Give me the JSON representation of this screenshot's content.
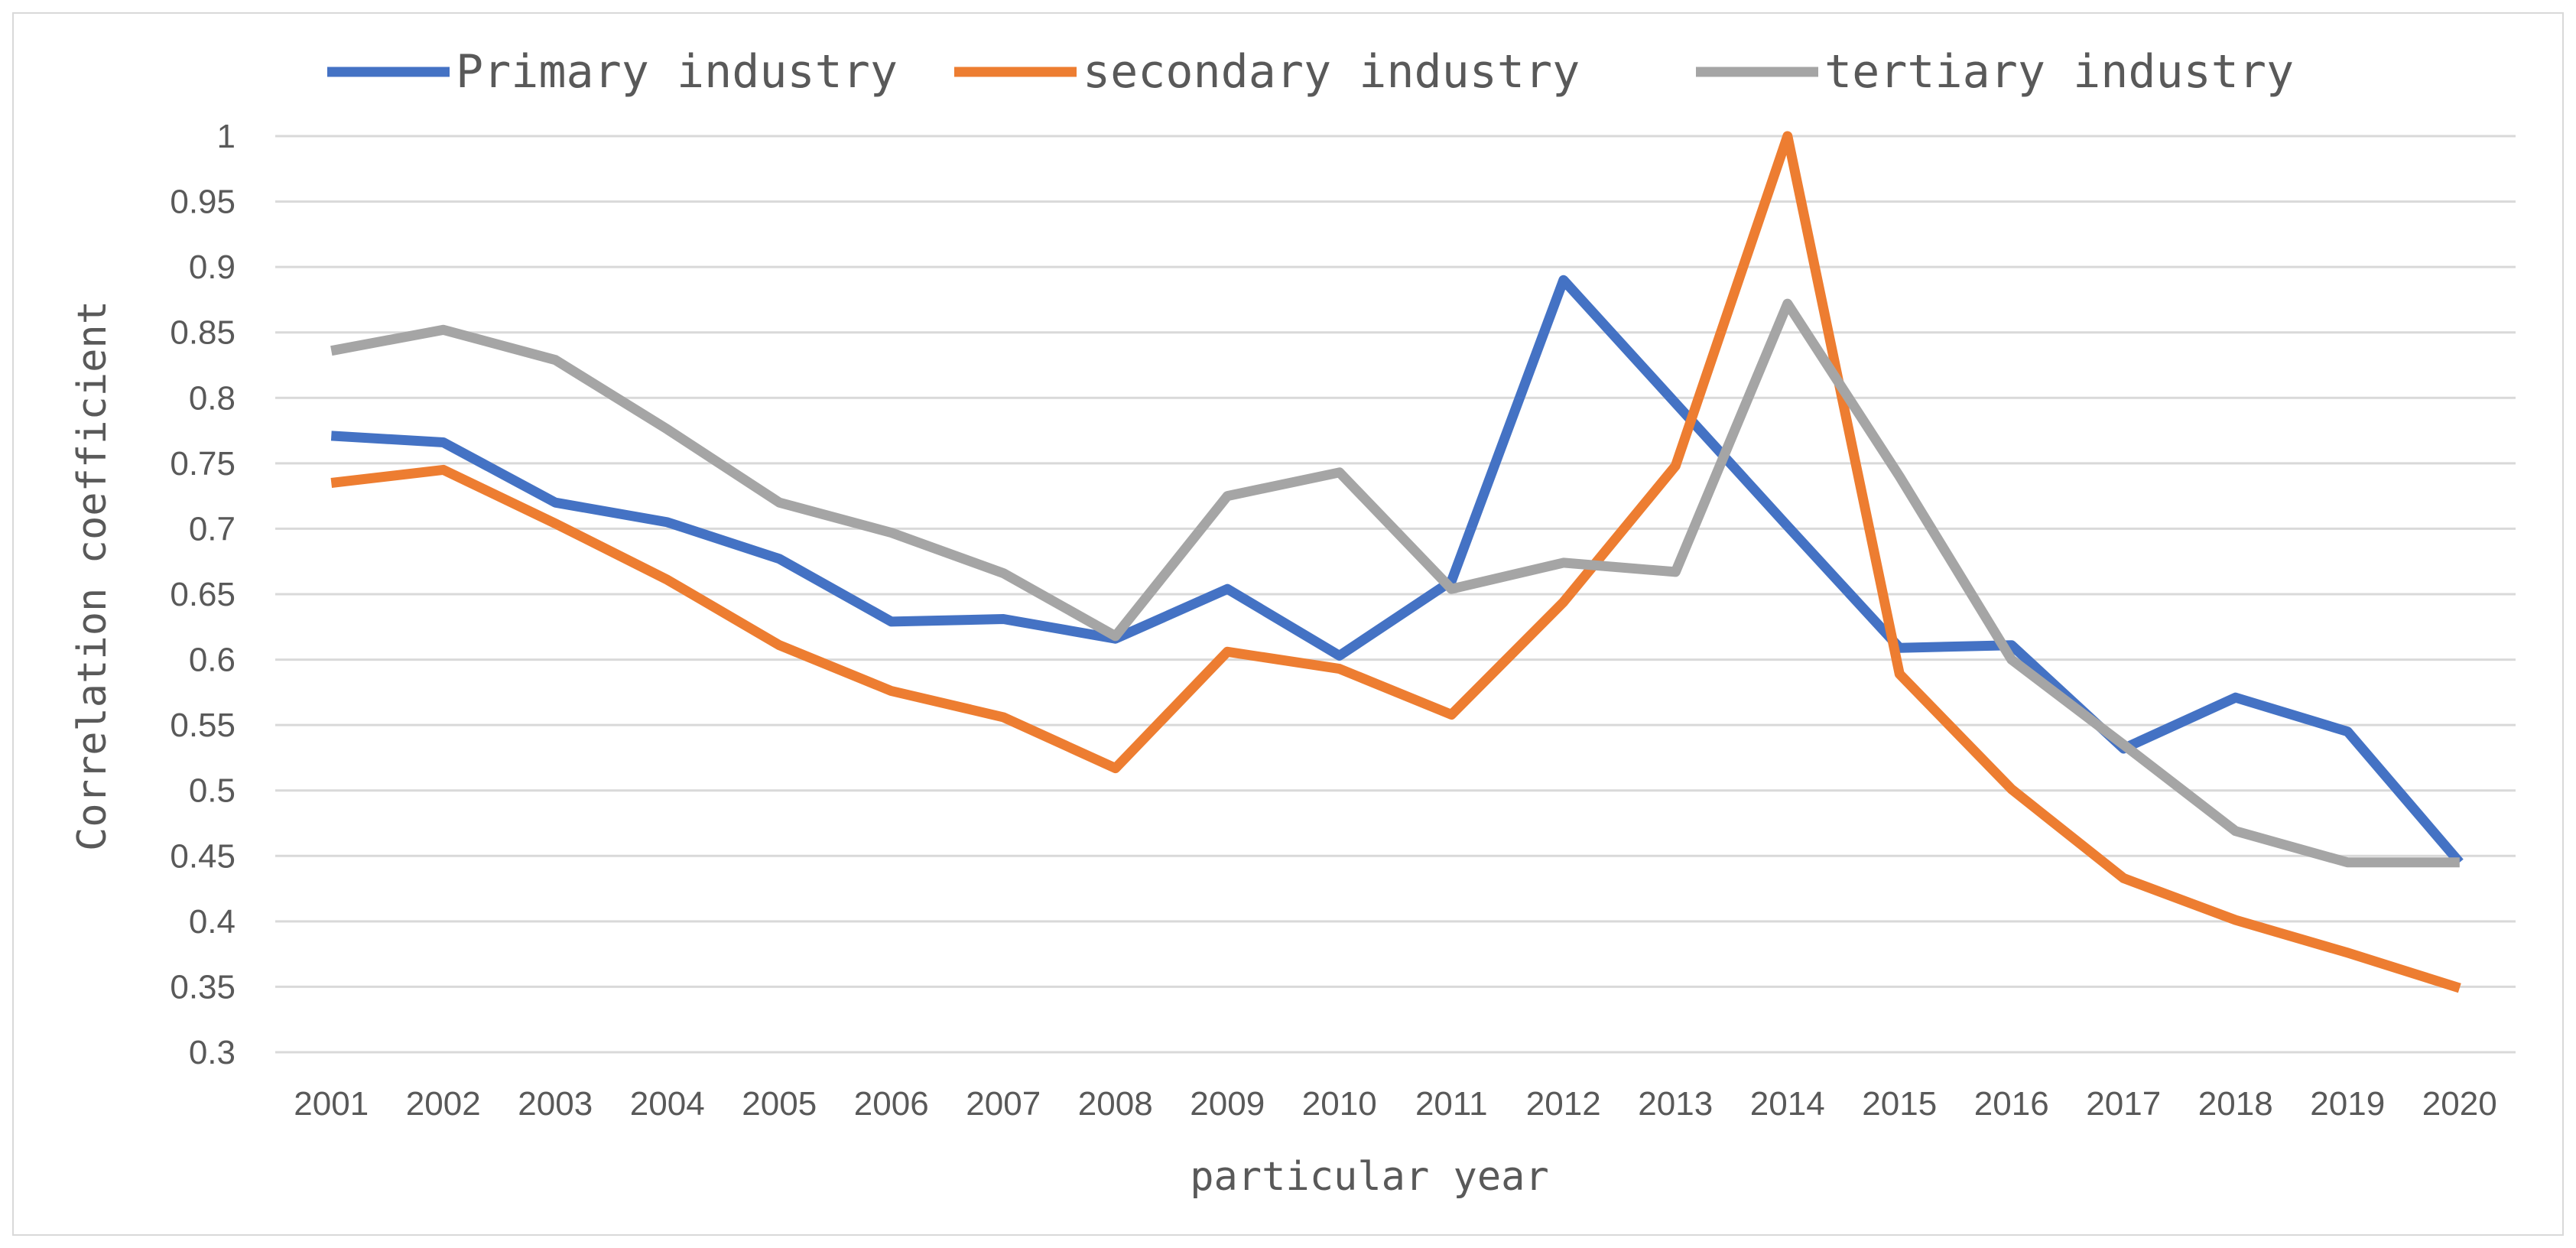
{
  "chart_data": {
    "type": "line",
    "title": "",
    "xlabel": "particular year",
    "ylabel": "Correlation coefficient",
    "ylim": [
      0.3,
      1.0
    ],
    "y_ticks": [
      "0.3",
      "0.35",
      "0.4",
      "0.45",
      "0.5",
      "0.55",
      "0.6",
      "0.65",
      "0.7",
      "0.75",
      "0.8",
      "0.85",
      "0.9",
      "0.95",
      "1"
    ],
    "grid": true,
    "legend_position": "top",
    "categories": [
      "2001",
      "2002",
      "2003",
      "2004",
      "2005",
      "2006",
      "2007",
      "2008",
      "2009",
      "2010",
      "2011",
      "2012",
      "2013",
      "2014",
      "2015",
      "2016",
      "2017",
      "2018",
      "2019",
      "2020"
    ],
    "series": [
      {
        "name": "Primary industry",
        "color": "#4472c4",
        "values": [
          0.771,
          0.766,
          0.72,
          0.705,
          0.677,
          0.629,
          0.631,
          0.616,
          0.654,
          0.603,
          0.66,
          0.89,
          0.796,
          0.702,
          0.609,
          0.611,
          0.532,
          0.571,
          0.545,
          0.445
        ]
      },
      {
        "name": "secondary industry",
        "color": "#ed7d31",
        "values": [
          0.735,
          0.745,
          0.704,
          0.661,
          0.611,
          0.576,
          0.556,
          0.517,
          0.606,
          0.593,
          0.558,
          0.644,
          0.748,
          1.0,
          0.589,
          0.501,
          0.433,
          0.401,
          0.376,
          0.349
        ]
      },
      {
        "name": "tertiary industry",
        "color": "#a5a5a5",
        "values": [
          0.836,
          0.852,
          0.829,
          0.776,
          0.72,
          0.697,
          0.666,
          0.618,
          0.725,
          0.743,
          0.654,
          0.674,
          0.667,
          0.872,
          0.74,
          0.6,
          0.535,
          0.469,
          0.445,
          0.445
        ]
      }
    ]
  }
}
